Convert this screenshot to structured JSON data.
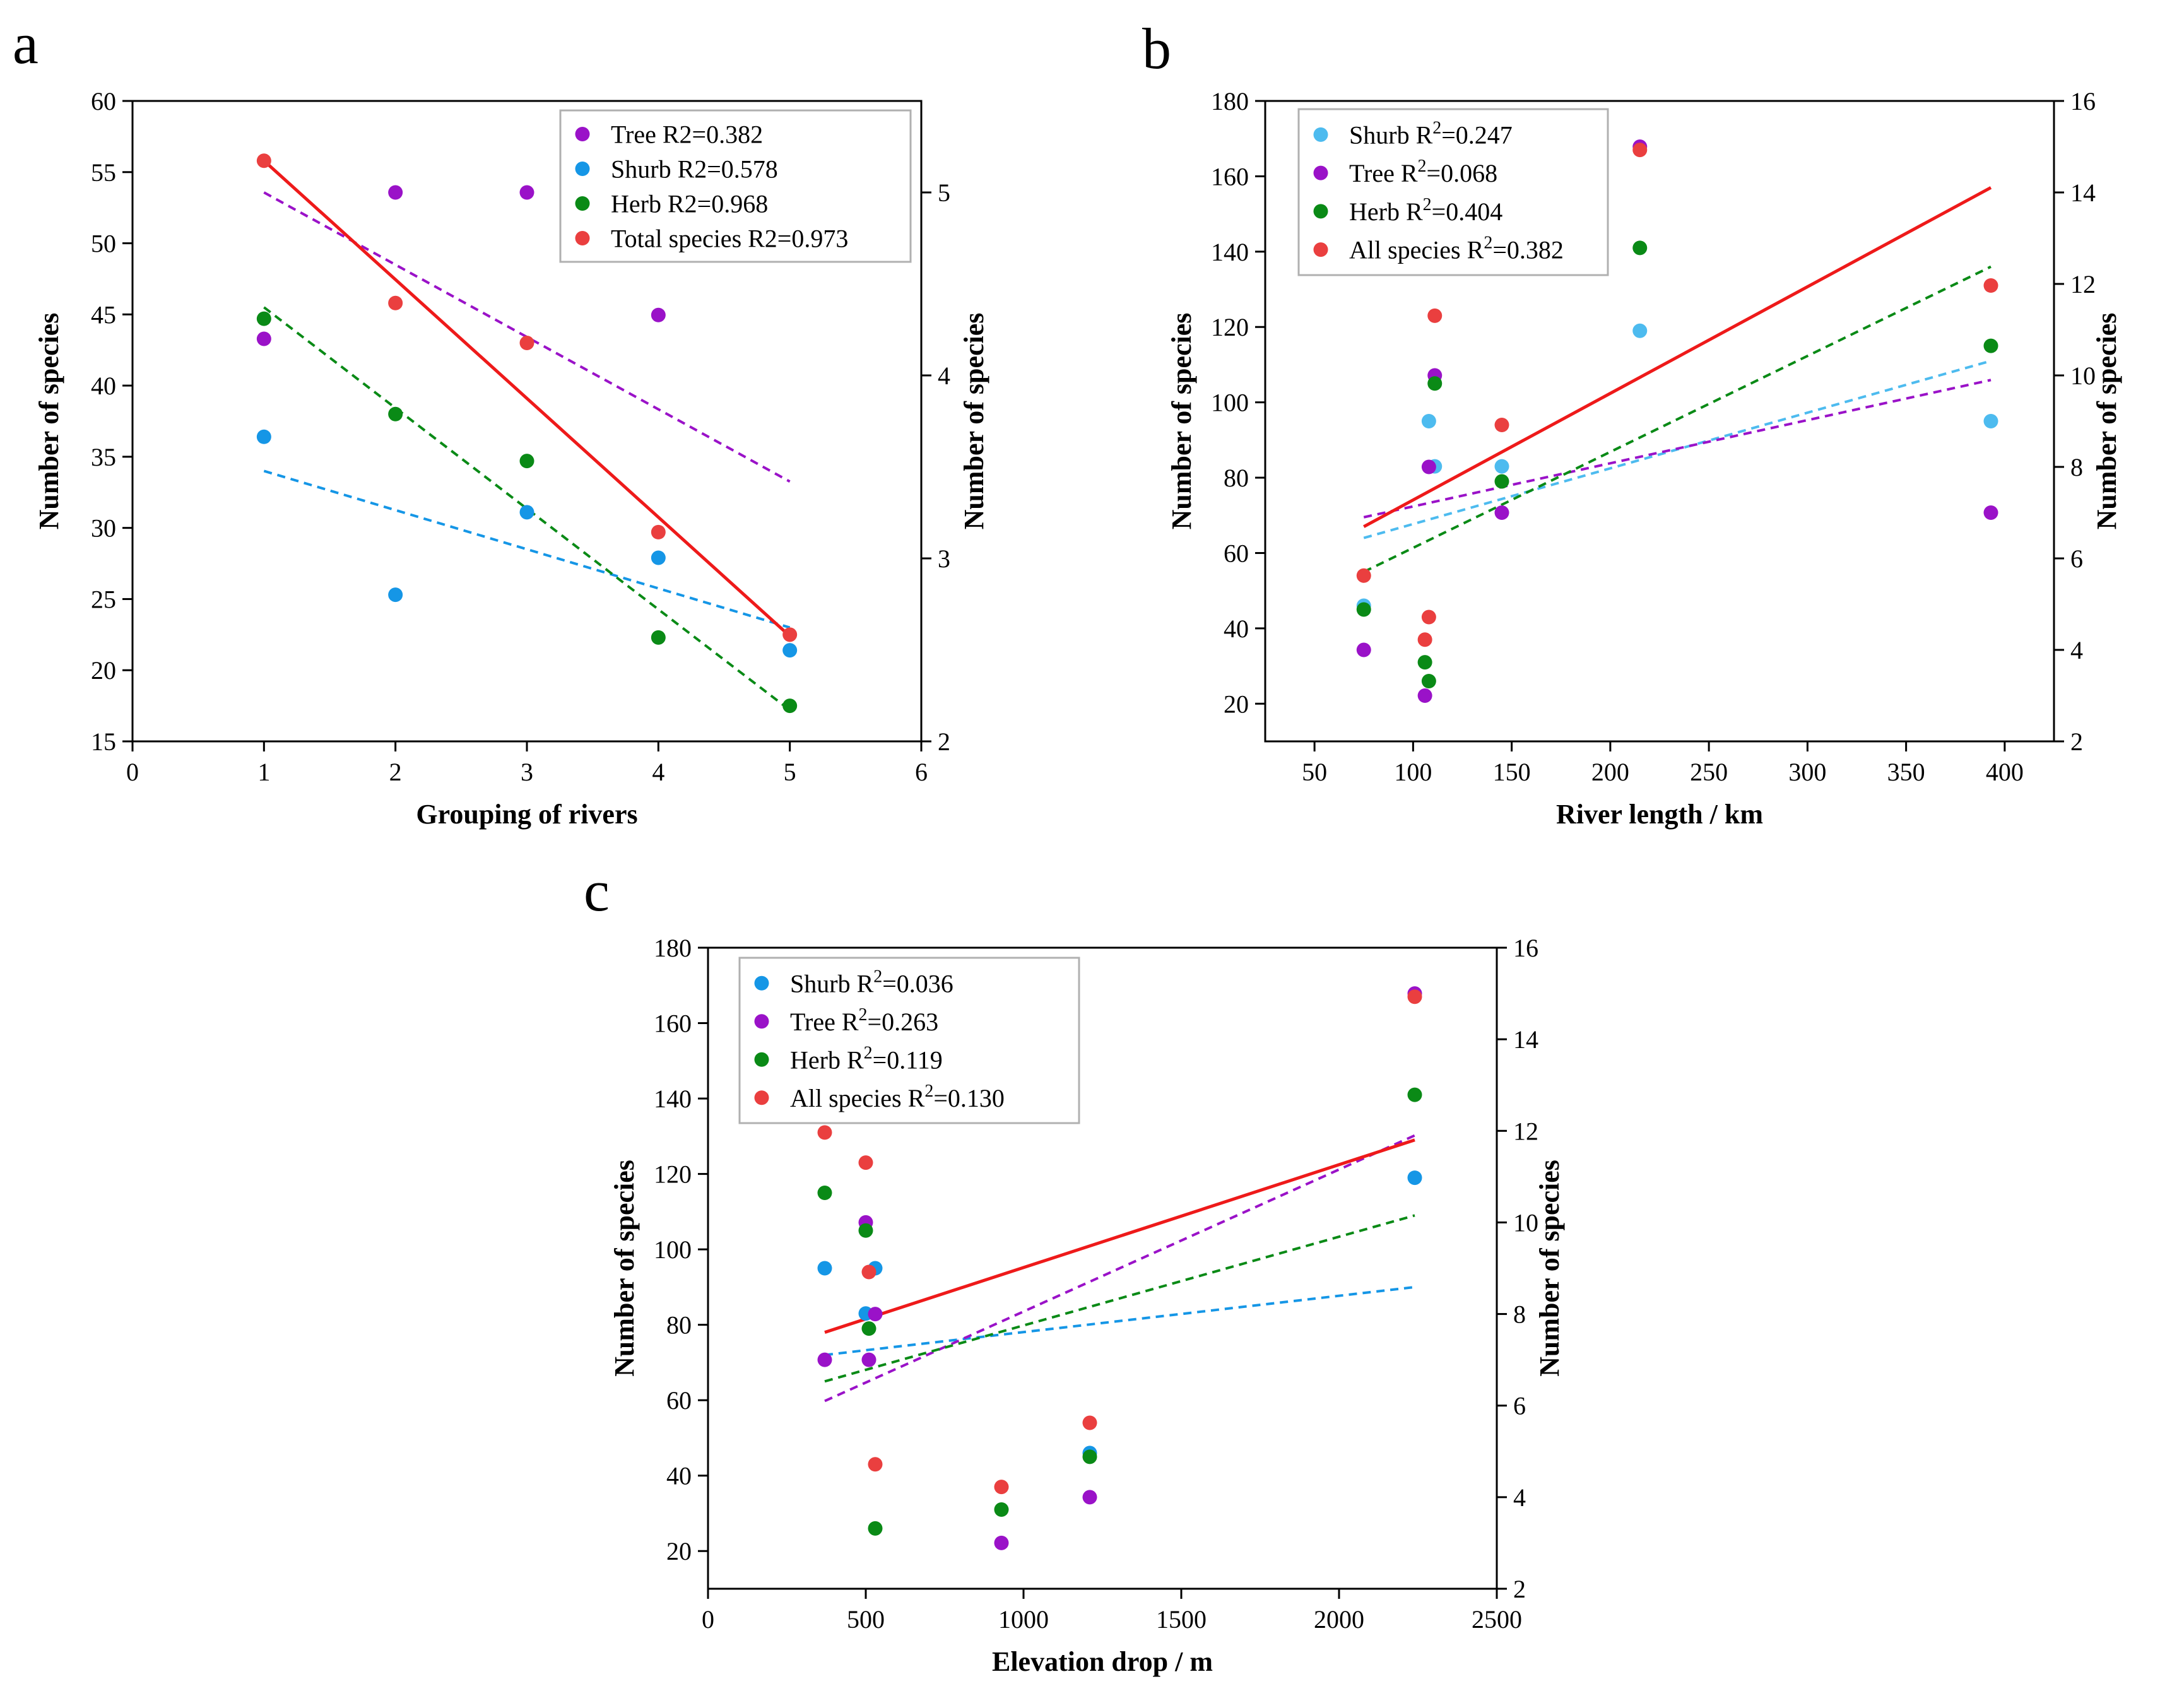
{
  "figure": {
    "colors": {
      "tree": "#9a12c8",
      "shrub_a": "#1596e6",
      "shrub_b": "#4dbbef",
      "herb": "#0a8a16",
      "all": "#ea3f3f",
      "total_line": "#ee1a1a"
    }
  },
  "chart_data": [
    {
      "panel": "a",
      "type": "scatter",
      "title": "",
      "xlabel": "Grouping of rivers",
      "ylabel": "Number of species",
      "y2label": "Number of species",
      "xlim": [
        0,
        6
      ],
      "ylim": [
        15,
        60
      ],
      "y2lim": [
        2,
        5.5
      ],
      "x_ticks": [
        0,
        1,
        2,
        3,
        4,
        5,
        6
      ],
      "y_ticks": [
        15,
        20,
        25,
        30,
        35,
        40,
        45,
        50,
        55,
        60
      ],
      "y2_ticks": [
        2,
        3,
        4,
        5
      ],
      "legend_position": "top-right",
      "series": [
        {
          "name": "Tree R2=0.382",
          "color_key": "tree",
          "axis": "right",
          "x": [
            1,
            2,
            3,
            4
          ],
          "y": [
            4.2,
            5.0,
            5.0,
            4.33
          ],
          "fit": {
            "x": [
              1,
              5
            ],
            "y": [
              5.0,
              3.42
            ],
            "style": "dashed"
          }
        },
        {
          "name": "Shurb R2=0.578",
          "color_key": "shrub_a",
          "axis": "left",
          "x": [
            1,
            2,
            3,
            4,
            5
          ],
          "y": [
            36.4,
            25.3,
            31.1,
            27.9,
            21.4
          ],
          "fit": {
            "x": [
              1,
              5
            ],
            "y": [
              34.0,
              23.0
            ],
            "style": "dashed"
          }
        },
        {
          "name": "Herb R2=0.968",
          "color_key": "herb",
          "axis": "left",
          "x": [
            1,
            2,
            3,
            4,
            5
          ],
          "y": [
            44.7,
            38.0,
            34.7,
            22.3,
            17.5
          ],
          "fit": {
            "x": [
              1,
              5
            ],
            "y": [
              45.5,
              17.2
            ],
            "style": "dashed"
          }
        },
        {
          "name": "Total species R2=0.973",
          "color_key": "all",
          "axis": "left",
          "x": [
            1,
            2,
            3,
            4,
            5
          ],
          "y": [
            55.8,
            45.8,
            43.0,
            29.7,
            22.5
          ],
          "fit": {
            "x": [
              1,
              5
            ],
            "y": [
              55.8,
              22.4
            ],
            "style": "solid"
          }
        }
      ]
    },
    {
      "panel": "b",
      "type": "scatter",
      "title": "",
      "xlabel": "River length / km",
      "ylabel": "Number of species",
      "y2label": "Number of species",
      "xlim": [
        25,
        425
      ],
      "ylim": [
        10,
        180
      ],
      "y2lim": [
        2,
        16
      ],
      "x_ticks": [
        50,
        100,
        150,
        200,
        250,
        300,
        350,
        400
      ],
      "y_ticks": [
        20,
        40,
        60,
        80,
        100,
        120,
        140,
        160,
        180
      ],
      "y2_ticks": [
        2,
        4,
        6,
        8,
        10,
        12,
        14,
        16
      ],
      "legend_position": "top-left",
      "series": [
        {
          "name": "Shurb R",
          "sup": "2",
          "r2": "=0.247",
          "color_key": "shrub_b",
          "axis": "left",
          "x": [
            75,
            108,
            111,
            145,
            215,
            393
          ],
          "y": [
            46,
            95,
            83,
            83,
            119,
            95
          ],
          "fit": {
            "x": [
              75,
              393
            ],
            "y": [
              64,
              111
            ],
            "style": "dashed"
          }
        },
        {
          "name": "Tree R",
          "sup": "2",
          "r2": "=0.068",
          "color_key": "tree",
          "axis": "right",
          "x": [
            75,
            106,
            108,
            111,
            145,
            215,
            393
          ],
          "y": [
            4,
            3,
            8,
            10,
            7,
            15,
            7
          ],
          "fit": {
            "x": [
              75,
              393
            ],
            "y": [
              6.9,
              9.9
            ],
            "style": "dashed"
          }
        },
        {
          "name": "Herb R",
          "sup": "2",
          "r2": "=0.404",
          "color_key": "herb",
          "axis": "left",
          "x": [
            75,
            106,
            108,
            111,
            145,
            215,
            393
          ],
          "y": [
            45,
            31,
            26,
            105,
            79,
            141,
            115
          ],
          "fit": {
            "x": [
              75,
              393
            ],
            "y": [
              55,
              136
            ],
            "style": "dashed"
          }
        },
        {
          "name": "All species R",
          "sup": "2",
          "r2": "=0.382",
          "color_key": "all",
          "axis": "left",
          "x": [
            75,
            106,
            108,
            111,
            145,
            215,
            393
          ],
          "y": [
            54,
            37,
            43,
            123,
            94,
            167,
            131
          ],
          "fit": {
            "x": [
              75,
              393
            ],
            "y": [
              67,
              157
            ],
            "style": "solid"
          }
        }
      ]
    },
    {
      "panel": "c",
      "type": "scatter",
      "title": "",
      "xlabel": "Elevation drop / m",
      "ylabel": "Number of species",
      "y2label": "Number of species",
      "xlim": [
        0,
        2500
      ],
      "ylim": [
        10,
        180
      ],
      "y2lim": [
        2,
        16
      ],
      "x_ticks": [
        0,
        500,
        1000,
        1500,
        2000,
        2500
      ],
      "y_ticks": [
        20,
        40,
        60,
        80,
        100,
        120,
        140,
        160,
        180
      ],
      "y2_ticks": [
        2,
        4,
        6,
        8,
        10,
        12,
        14,
        16
      ],
      "legend_position": "top-left",
      "series": [
        {
          "name": "Shurb R",
          "sup": "2",
          "r2": "=0.036",
          "color_key": "shrub_a",
          "axis": "left",
          "x": [
            370,
            500,
            530,
            1210,
            2240
          ],
          "y": [
            95,
            83,
            95,
            46,
            119
          ],
          "fit": {
            "x": [
              370,
              2240
            ],
            "y": [
              72,
              90
            ],
            "style": "dashed"
          }
        },
        {
          "name": "Tree R",
          "sup": "2",
          "r2": "=0.263",
          "color_key": "tree",
          "axis": "right",
          "x": [
            370,
            500,
            510,
            530,
            930,
            1210,
            2240
          ],
          "y": [
            7,
            10,
            7,
            8,
            3,
            4,
            15
          ],
          "fit": {
            "x": [
              370,
              2240
            ],
            "y": [
              6.1,
              11.9
            ],
            "style": "dashed"
          }
        },
        {
          "name": "Herb R",
          "sup": "2",
          "r2": "=0.119",
          "color_key": "herb",
          "axis": "left",
          "x": [
            370,
            500,
            510,
            530,
            930,
            1210,
            2240
          ],
          "y": [
            115,
            105,
            79,
            26,
            31,
            45,
            141
          ],
          "fit": {
            "x": [
              370,
              2240
            ],
            "y": [
              65,
              109
            ],
            "style": "dashed"
          }
        },
        {
          "name": "All species R",
          "sup": "2",
          "r2": "=0.130",
          "color_key": "all",
          "axis": "left",
          "x": [
            370,
            500,
            510,
            530,
            930,
            1210,
            2240
          ],
          "y": [
            131,
            123,
            94,
            43,
            37,
            54,
            167
          ],
          "fit": {
            "x": [
              370,
              2240
            ],
            "y": [
              78,
              129
            ],
            "style": "solid"
          }
        }
      ]
    }
  ]
}
